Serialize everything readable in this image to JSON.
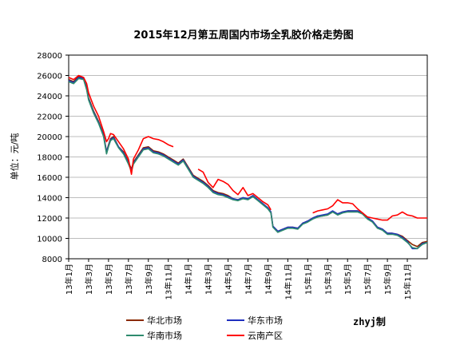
{
  "chart_data": {
    "type": "line",
    "title": "2015年12月第五周国内市场全乳胶价格走势图",
    "ylabel": "单位：元/吨",
    "ylim": [
      8000,
      28000
    ],
    "yticks": [
      "28000",
      "26000",
      "24000",
      "22000",
      "20000",
      "18000",
      "16000",
      "14000",
      "12000",
      "10000",
      "8000"
    ],
    "x_labels": [
      "13年1月",
      "13年3月",
      "13年5月",
      "13年7月",
      "13年9月",
      "13年11月",
      "14年1月",
      "14年3月",
      "14年5月",
      "14年7月",
      "14年9月",
      "14年11月",
      "15年1月",
      "15年3月",
      "15年5月",
      "15年7月",
      "15年9月",
      "15年11月"
    ],
    "x_label_months": [
      0,
      2,
      4,
      6,
      8,
      10,
      12,
      14,
      16,
      18,
      20,
      22,
      24,
      26,
      28,
      30,
      32,
      34
    ],
    "x_range": [
      0,
      36
    ],
    "watermark": "zhyj制",
    "series": [
      {
        "name": "华北市场",
        "color": "#8b2a00",
        "x": [
          0,
          0.5,
          1,
          1.5,
          1.8,
          2,
          2.5,
          3,
          3.5,
          3.8,
          4,
          4.2,
          4.5,
          5,
          5.5,
          6,
          6.3,
          6.5,
          7,
          7.5,
          8,
          8.5,
          9,
          9.5,
          10,
          10.5,
          11,
          11.5,
          12,
          12.5,
          13,
          13.5,
          14,
          14.5,
          15,
          15.5,
          16,
          16.5,
          17,
          17.5,
          18,
          18.5,
          19,
          19.5,
          20,
          20.3,
          20.5,
          21,
          21.5,
          22,
          22.5,
          23,
          23.5,
          24,
          24.5,
          25,
          25.5,
          26,
          26.5,
          27,
          27.5,
          28,
          28.5,
          29,
          29.5,
          30,
          30.5,
          31,
          31.5,
          32,
          32.5,
          33,
          33.5,
          34,
          34.5,
          35,
          35.5,
          36
        ],
        "y": [
          25600,
          25400,
          25900,
          25700,
          24800,
          23800,
          22500,
          21500,
          20200,
          18500,
          19200,
          19800,
          20000,
          19000,
          18500,
          17500,
          16800,
          17500,
          18200,
          18900,
          19000,
          18600,
          18500,
          18300,
          18000,
          17700,
          17400,
          17800,
          17000,
          16200,
          15900,
          15600,
          15200,
          14700,
          14500,
          14400,
          14200,
          13900,
          13800,
          14000,
          13900,
          14200,
          13800,
          13400,
          13000,
          12600,
          11200,
          10700,
          10900,
          11100,
          11100,
          11000,
          11500,
          11700,
          12000,
          12200,
          12200,
          12300,
          12600,
          12400,
          12600,
          12700,
          12700,
          12700,
          12500,
          12000,
          11700,
          11100,
          10900,
          10500,
          10500,
          10400,
          10200,
          9800,
          9400,
          9200,
          9600,
          9700
        ]
      },
      {
        "name": "华东市场",
        "color": "#1f2fbf",
        "x": [
          0,
          0.5,
          1,
          1.5,
          1.8,
          2,
          2.5,
          3,
          3.5,
          3.8,
          4,
          4.2,
          4.5,
          5,
          5.5,
          6,
          6.3,
          6.5,
          7,
          7.5,
          8,
          8.5,
          9,
          9.5,
          10,
          10.5,
          11,
          11.5,
          12,
          12.5,
          13,
          13.5,
          14,
          14.5,
          15,
          15.5,
          16,
          16.5,
          17,
          17.5,
          18,
          18.5,
          19,
          19.5,
          20,
          20.3,
          20.5,
          21,
          21.5,
          22,
          22.5,
          23,
          23.5,
          24,
          24.5,
          25,
          25.5,
          26,
          26.5,
          27,
          27.5,
          28,
          28.5,
          29,
          29.5,
          30,
          30.5,
          31,
          31.5,
          32,
          32.5,
          33,
          33.5,
          34,
          34.5,
          35,
          35.5,
          36
        ],
        "y": [
          25500,
          25300,
          25800,
          25700,
          24700,
          23700,
          22400,
          21400,
          20100,
          18500,
          19100,
          19700,
          19900,
          19000,
          18400,
          17400,
          16700,
          17400,
          18100,
          18800,
          18900,
          18500,
          18400,
          18200,
          17900,
          17600,
          17300,
          17700,
          16900,
          16100,
          15800,
          15500,
          15100,
          14600,
          14400,
          14300,
          14100,
          13900,
          13800,
          14000,
          13900,
          14200,
          13800,
          13400,
          13000,
          12600,
          11200,
          10700,
          10900,
          11100,
          11100,
          11000,
          11500,
          11700,
          12000,
          12200,
          12300,
          12400,
          12700,
          12400,
          12600,
          12700,
          12700,
          12700,
          12500,
          12000,
          11700,
          11100,
          10900,
          10500,
          10500,
          10400,
          10100,
          9700,
          9000,
          9000,
          9500,
          9600
        ]
      },
      {
        "name": "华南市场",
        "color": "#2e8b6e",
        "x": [
          0,
          0.5,
          1,
          1.5,
          1.8,
          2,
          2.5,
          3,
          3.5,
          3.8,
          4,
          4.2,
          4.5,
          5,
          5.5,
          6,
          6.3,
          6.5,
          7,
          7.5,
          8,
          8.5,
          9,
          9.5,
          10,
          10.5,
          11,
          11.5,
          12,
          12.5,
          13,
          13.5,
          14,
          14.5,
          15,
          15.5,
          16,
          16.5,
          17,
          17.5,
          18,
          18.5,
          19,
          19.5,
          20,
          20.3,
          20.5,
          21,
          21.5,
          22,
          22.5,
          23,
          23.5,
          24,
          24.5,
          25,
          25.5,
          26,
          26.5,
          27,
          27.5,
          28,
          28.5,
          29,
          29.5,
          30,
          30.5,
          31,
          31.5,
          32,
          32.5,
          33,
          33.5,
          34,
          34.5,
          35,
          35.5,
          36
        ],
        "y": [
          25400,
          25200,
          25700,
          25600,
          24600,
          23600,
          22300,
          21300,
          20000,
          18300,
          19000,
          19600,
          19800,
          18900,
          18300,
          17300,
          16600,
          17300,
          18000,
          18700,
          18800,
          18400,
          18300,
          18100,
          17800,
          17500,
          17200,
          17600,
          16800,
          16000,
          15700,
          15400,
          15000,
          14500,
          14300,
          14200,
          14000,
          13800,
          13700,
          13900,
          13800,
          14100,
          13700,
          13300,
          12900,
          12500,
          11100,
          10600,
          10800,
          11000,
          11000,
          10900,
          11400,
          11600,
          11900,
          12100,
          12200,
          12300,
          12600,
          12300,
          12500,
          12600,
          12600,
          12600,
          12400,
          11900,
          11600,
          11000,
          10800,
          10400,
          10400,
          10300,
          10000,
          9600,
          9100,
          9000,
          9400,
          9600
        ]
      },
      {
        "name": "云南产区",
        "color": "#ff0000",
        "x": [
          0,
          0.5,
          1,
          1.5,
          1.8,
          2,
          2.5,
          3,
          3.5,
          3.8,
          4,
          4.2,
          4.5,
          5,
          5.5,
          6,
          6.3,
          6.5,
          7,
          7.5,
          8,
          8.5,
          9,
          9.5,
          10,
          10.5,
          11,
          11.5,
          12,
          12.5,
          13,
          13.5,
          14,
          14.5,
          15,
          15.5,
          16,
          16.5,
          17,
          17.5,
          18,
          18.5,
          19,
          19.5,
          20,
          20.3,
          20.5,
          21,
          21.5,
          22,
          22.5,
          23,
          23.5,
          24,
          24.5,
          25,
          25.5,
          26,
          26.5,
          27,
          27.5,
          28,
          28.5,
          29,
          29.5,
          30,
          30.5,
          31,
          31.5,
          32,
          32.5,
          33,
          33.5,
          34,
          34.5,
          35,
          35.5,
          36
        ],
        "y": [
          25800,
          25600,
          26000,
          25800,
          25200,
          24300,
          23000,
          22000,
          20500,
          19500,
          19800,
          20300,
          20200,
          19500,
          18800,
          17800,
          16300,
          17800,
          18700,
          19800,
          20000,
          19800,
          19700,
          19500,
          19200,
          19000,
          null,
          null,
          20000,
          null,
          16800,
          16500,
          15500,
          15000,
          15800,
          15600,
          15300,
          14700,
          14300,
          15000,
          14200,
          14400,
          14000,
          13600,
          13300,
          12800,
          null,
          null,
          null,
          null,
          null,
          null,
          null,
          null,
          12500,
          12700,
          12800,
          12900,
          13200,
          13800,
          13500,
          13500,
          13400,
          12900,
          12500,
          12100,
          12000,
          11900,
          11800,
          11800,
          12200,
          12300,
          12600,
          12300,
          12200,
          12000,
          12000,
          12000
        ]
      }
    ]
  }
}
